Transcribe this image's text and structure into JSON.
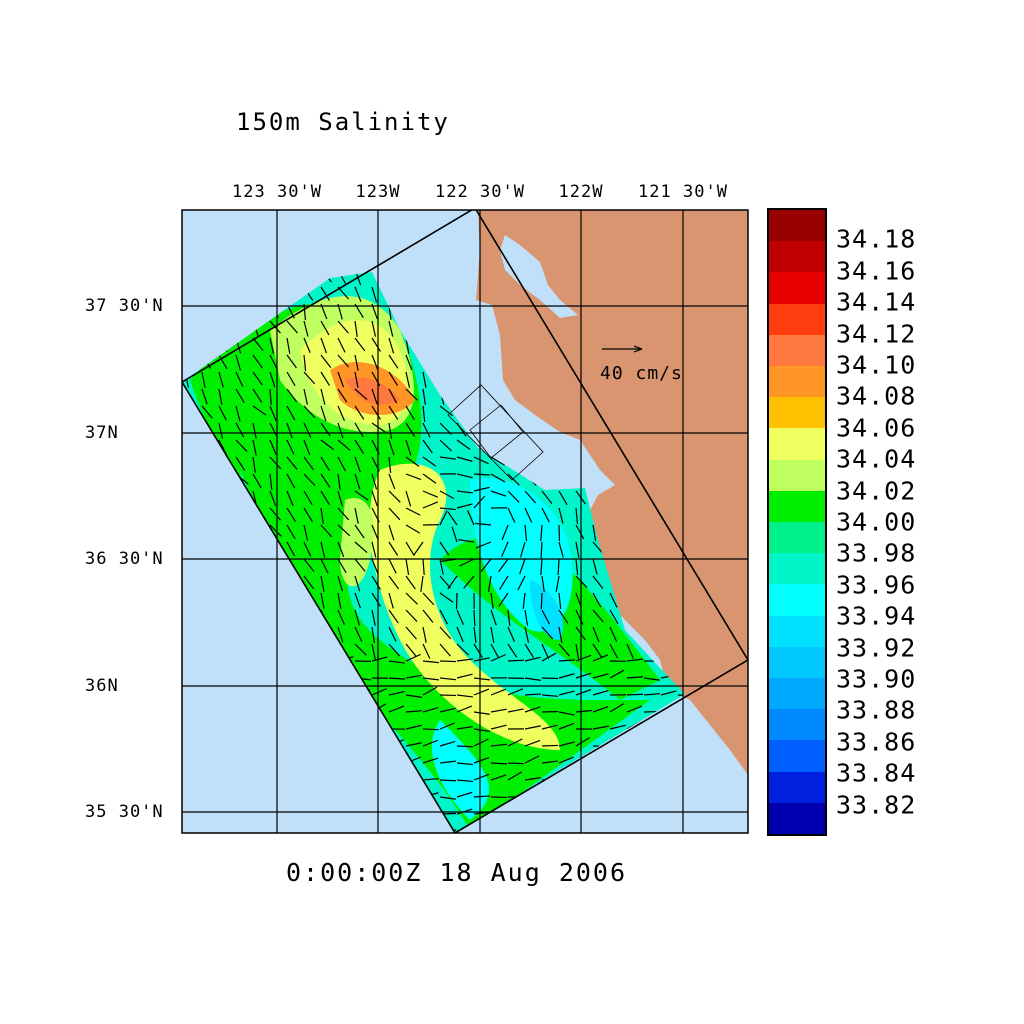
{
  "title": "150m Salinity",
  "time_label": "0:00:00Z  18 Aug 2006",
  "map": {
    "lon_labels": [
      "123 30'W",
      "123W",
      "122 30'W",
      "122W",
      "121 30'W"
    ],
    "lat_labels": [
      "37 30'N",
      "37N",
      "36 30'N",
      "36N",
      "35 30'N"
    ],
    "reference_vector": "40 cm/s",
    "ocean_color": "#c0e0fa",
    "land_color": "#d9956f"
  },
  "colorbar": {
    "labels": [
      "34.18",
      "34.16",
      "34.14",
      "34.12",
      "34.10",
      "34.08",
      "34.06",
      "34.04",
      "34.02",
      "34.00",
      "33.98",
      "33.96",
      "33.94",
      "33.92",
      "33.90",
      "33.88",
      "33.86",
      "33.84",
      "33.82"
    ],
    "colors": [
      "#990000",
      "#c00000",
      "#e60000",
      "#ff3c0e",
      "#ff7840",
      "#ff9626",
      "#ffc000",
      "#f0ff60",
      "#c0ff60",
      "#00ee00",
      "#00f08c",
      "#00f5c8",
      "#00ffff",
      "#00e0ff",
      "#00c8ff",
      "#00a8ff",
      "#0088ff",
      "#0060ff",
      "#0020e0",
      "#0000b0"
    ]
  }
}
